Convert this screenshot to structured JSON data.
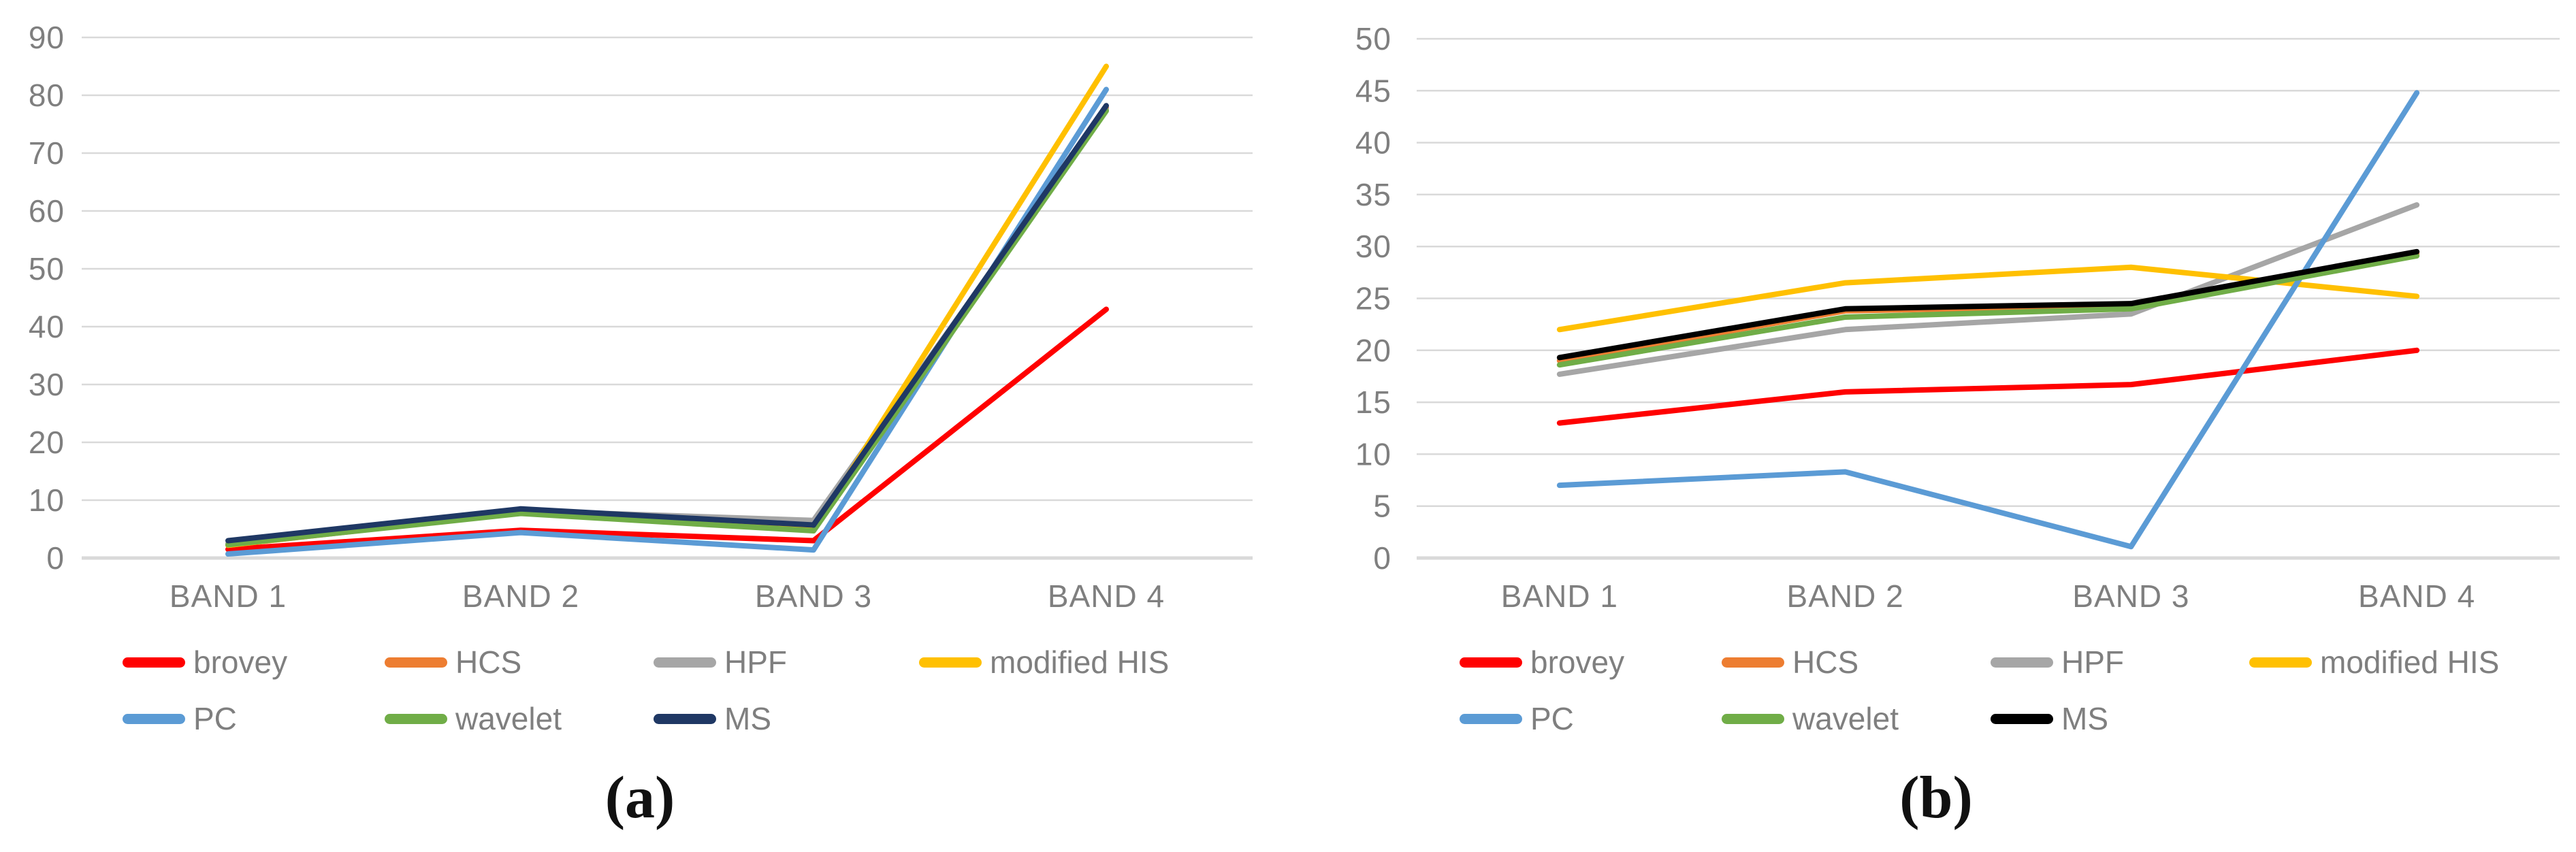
{
  "styles": {
    "background": "#FFFFFF",
    "text_color": "#7F7F7F",
    "gridline_color": "#D9D9D9",
    "caption_color": "#111111"
  },
  "chart_data": [
    {
      "id": "a",
      "type": "line",
      "caption": "(a)",
      "title": "",
      "xlabel": "",
      "ylabel": "",
      "grid": true,
      "legend_position": "bottom",
      "categories": [
        "BAND 1",
        "BAND 2",
        "BAND 3",
        "BAND 4"
      ],
      "ylim": [
        0,
        90
      ],
      "ytick_step": 10,
      "ytick_labels": [
        "0",
        "10",
        "20",
        "30",
        "40",
        "50",
        "60",
        "70",
        "80",
        "90"
      ],
      "legend_rows": [
        [
          "brovey",
          "HCS",
          "HPF",
          "modified HIS"
        ],
        [
          "PC",
          "wavelet",
          "MS"
        ]
      ],
      "series": [
        {
          "name": "brovey",
          "color": "#FF0000",
          "values": [
            1.5,
            4.8,
            3.0,
            43.0
          ]
        },
        {
          "name": "HCS",
          "color": "#ED7D31",
          "values": [
            2.2,
            7.9,
            4.9,
            77.8
          ]
        },
        {
          "name": "HPF",
          "color": "#A6A6A6",
          "values": [
            2.5,
            8.2,
            6.5,
            77.5
          ]
        },
        {
          "name": "modified HIS",
          "color": "#FFC000",
          "values": [
            2.2,
            8.0,
            4.8,
            85.0
          ]
        },
        {
          "name": "PC",
          "color": "#5B9BD5",
          "values": [
            0.7,
            4.4,
            1.4,
            81.0
          ]
        },
        {
          "name": "wavelet",
          "color": "#70AD47",
          "values": [
            2.3,
            7.7,
            4.7,
            77.3
          ]
        },
        {
          "name": "MS",
          "color": "#1F3864",
          "values": [
            3.0,
            8.5,
            5.7,
            78.2
          ]
        }
      ]
    },
    {
      "id": "b",
      "type": "line",
      "caption": "(b)",
      "title": "",
      "xlabel": "",
      "ylabel": "",
      "grid": true,
      "legend_position": "bottom",
      "categories": [
        "BAND 1",
        "BAND 2",
        "BAND 3",
        "BAND 4"
      ],
      "ylim": [
        0,
        50
      ],
      "ytick_step": 5,
      "ytick_labels": [
        "0",
        "5",
        "10",
        "15",
        "20",
        "25",
        "30",
        "35",
        "40",
        "45",
        "50"
      ],
      "legend_rows": [
        [
          "brovey",
          "HCS",
          "HPF",
          "modified HIS"
        ],
        [
          "PC",
          "wavelet",
          "MS"
        ]
      ],
      "series": [
        {
          "name": "brovey",
          "color": "#FF0000",
          "values": [
            13.0,
            16.0,
            16.7,
            20.0
          ]
        },
        {
          "name": "HCS",
          "color": "#ED7D31",
          "values": [
            19.0,
            23.8,
            24.3,
            29.3
          ]
        },
        {
          "name": "HPF",
          "color": "#A6A6A6",
          "values": [
            17.7,
            22.0,
            23.5,
            34.0
          ]
        },
        {
          "name": "modified HIS",
          "color": "#FFC000",
          "values": [
            22.0,
            26.5,
            28.0,
            25.2
          ]
        },
        {
          "name": "PC",
          "color": "#5B9BD5",
          "values": [
            7.0,
            8.3,
            1.1,
            44.8
          ]
        },
        {
          "name": "wavelet",
          "color": "#70AD47",
          "values": [
            18.6,
            23.2,
            24.0,
            29.1
          ]
        },
        {
          "name": "MS",
          "color": "#000000",
          "values": [
            19.3,
            24.0,
            24.5,
            29.5
          ]
        }
      ]
    }
  ]
}
